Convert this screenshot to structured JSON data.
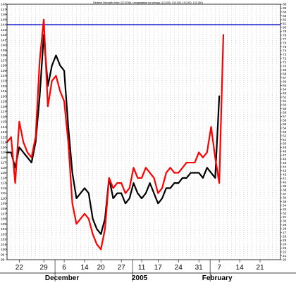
{
  "chart_data": {
    "type": "line",
    "title": "Relative Strength Index (32.6788), сглаживание по методу (113.000, 133.000, 113.000, 132.360)",
    "x_labels": [
      {
        "text": "22",
        "index": 3
      },
      {
        "text": "29",
        "index": 9
      },
      {
        "text": "6",
        "index": 14
      },
      {
        "text": "14",
        "index": 19
      },
      {
        "text": "20",
        "index": 23
      },
      {
        "text": "27",
        "index": 28
      },
      {
        "text": "11",
        "index": 33
      },
      {
        "text": "17",
        "index": 37
      },
      {
        "text": "24",
        "index": 42
      },
      {
        "text": "31",
        "index": 47
      },
      {
        "text": "7",
        "index": 52
      },
      {
        "text": "14",
        "index": 57
      },
      {
        "text": "21",
        "index": 62
      }
    ],
    "x_section_labels": [
      {
        "text": "December",
        "index": 14
      },
      {
        "text": "2005",
        "index": 33
      },
      {
        "text": "February",
        "index": 52
      }
    ],
    "x_range": [
      0,
      67
    ],
    "y_left": {
      "min": 98,
      "max": 148,
      "step": 1
    },
    "y_right": {
      "min": 20,
      "max": 86,
      "step": 1
    },
    "grid_lines_x_every": 1,
    "hline": {
      "value": 144,
      "color": "#0000cc"
    },
    "series": [
      {
        "color": "#000000",
        "values": [
          119,
          119,
          116,
          120,
          119,
          118,
          117,
          121,
          130,
          142,
          132,
          136,
          138,
          136,
          135,
          124,
          115,
          110,
          111,
          112,
          111,
          106,
          104,
          103,
          106,
          114,
          110,
          111,
          111,
          109,
          110,
          113,
          111,
          110,
          111,
          113,
          111,
          109,
          110,
          112,
          112,
          113,
          113,
          114,
          114,
          115,
          115,
          115,
          114,
          116,
          115,
          114,
          130,
          null,
          null,
          null,
          null,
          null,
          null,
          null,
          null,
          null,
          null,
          null,
          null,
          null,
          null,
          null
        ]
      },
      {
        "color": "#ff0000",
        "values": [
          121,
          122,
          113,
          125,
          121,
          119,
          118,
          122,
          137,
          145,
          128,
          133,
          134,
          131,
          129,
          121,
          109,
          105,
          106,
          107,
          106,
          103,
          101,
          100,
          104,
          114,
          112,
          113,
          113,
          111,
          112,
          116,
          114,
          114,
          116,
          115,
          114,
          111,
          112,
          115,
          116,
          115,
          115,
          116,
          117,
          117,
          117,
          119,
          118,
          119,
          124,
          118,
          113,
          142,
          null,
          null,
          null,
          null,
          null,
          null,
          null,
          null,
          null,
          null,
          null,
          null,
          null,
          null
        ]
      }
    ]
  }
}
